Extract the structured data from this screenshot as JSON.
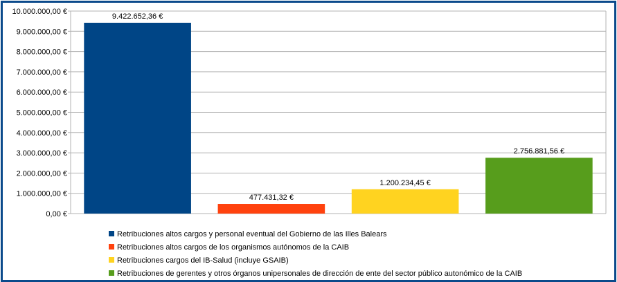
{
  "chart_data": {
    "type": "bar",
    "categories": [
      "Retribuciones altos cargos y personal eventual del Gobierno de las Illes Balears",
      "Retribuciones altos cargos de los organismos autónomos de la CAIB",
      "Retribuciones cargos del IB-Salud (incluye GSAIB)",
      "Retribuciones de gerentes y otros órganos unipersonales de dirección de ente del sector público autonómico de la CAIB"
    ],
    "values": [
      9422652.36,
      477431.32,
      1200234.45,
      2756881.56
    ],
    "value_labels": [
      "9.422.652,36 €",
      "477.431,32 €",
      "1.200.234,45 €",
      "2.756.881,56 €"
    ],
    "colors": [
      "#004586",
      "#ff420e",
      "#ffd320",
      "#579d1c"
    ],
    "ylim": [
      0,
      10000000
    ],
    "y_ticks": [
      0,
      1000000,
      2000000,
      3000000,
      4000000,
      5000000,
      6000000,
      7000000,
      8000000,
      9000000,
      10000000
    ],
    "y_tick_labels": [
      "0,00 €",
      "1.000.000,00 €",
      "2.000.000,00 €",
      "3.000.000,00 €",
      "4.000.000,00 €",
      "5.000.000,00 €",
      "6.000.000,00 €",
      "7.000.000,00 €",
      "8.000.000,00 €",
      "9.000.000,00 €",
      "10.000.000,00 €"
    ],
    "grid": true,
    "legend_position": "bottom",
    "frame_color": "#0b4a8b",
    "grid_color": "#b3b3b3"
  }
}
